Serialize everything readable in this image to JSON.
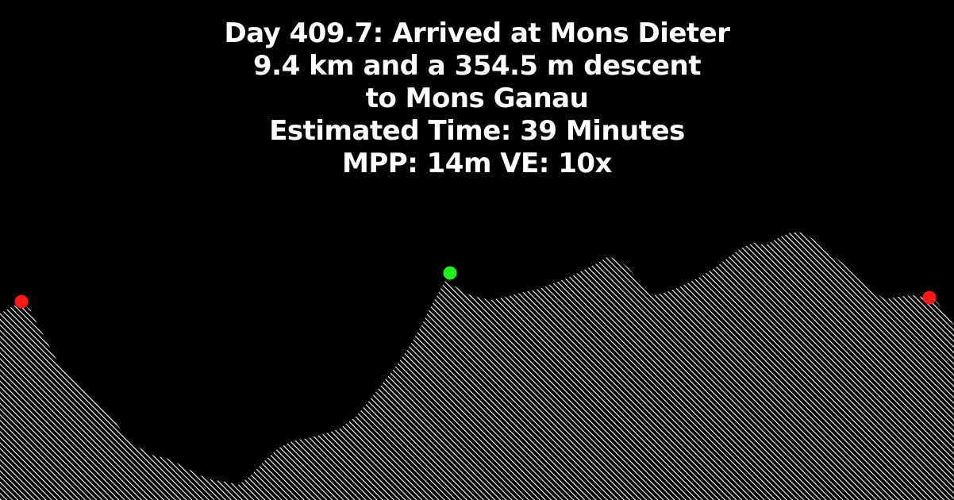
{
  "header": {
    "line1": "Day 409.7: Arrived at Mons Dieter",
    "line2": "9.4 km and a 354.5 m descent",
    "line3": "to Mons Ganau",
    "line4": "Estimated Time: 39 Minutes",
    "line5": "MPP: 14m VE: 10x"
  },
  "profile": {
    "markers": [
      {
        "name": "start",
        "color": "#ff1a1a"
      },
      {
        "name": "current",
        "color": "#22ee22"
      },
      {
        "name": "end",
        "color": "#ff1a1a"
      }
    ]
  },
  "colors": {
    "background": "#000000",
    "text": "#ffffff",
    "hatch": "#ffffff"
  }
}
